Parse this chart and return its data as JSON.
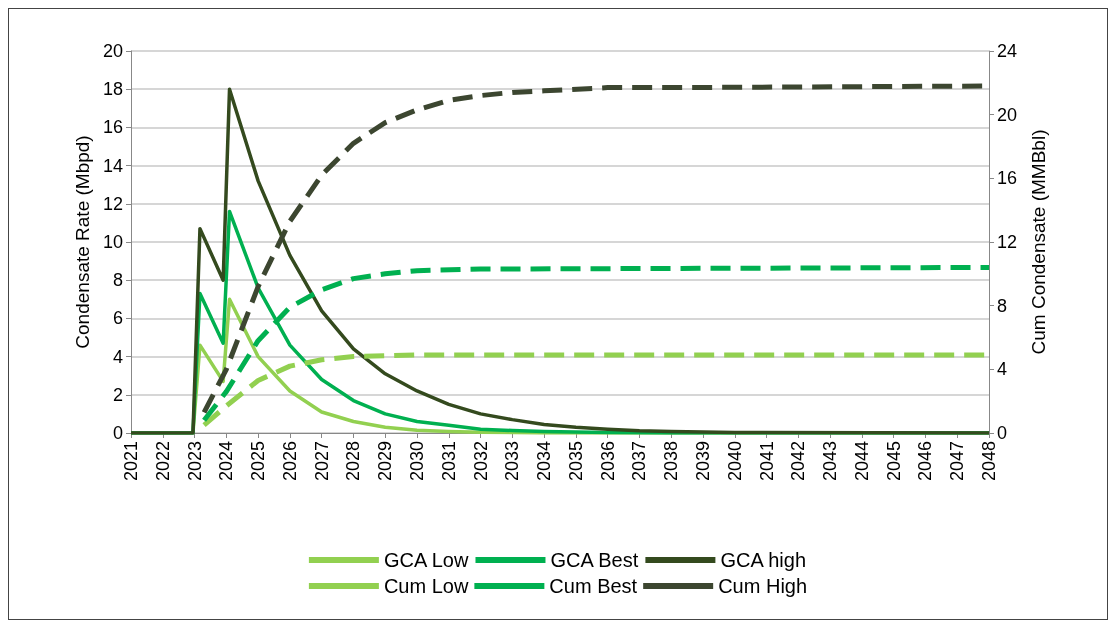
{
  "chart_data": {
    "type": "line",
    "ylabel": "Condensate Rate (Mbpd)",
    "y2label": "Cum Condensate (MMBbl)",
    "xlim": [
      2021,
      2048
    ],
    "xticks": [
      2021,
      2022,
      2023,
      2024,
      2025,
      2026,
      2027,
      2028,
      2029,
      2030,
      2031,
      2032,
      2033,
      2034,
      2035,
      2036,
      2037,
      2038,
      2039,
      2040,
      2041,
      2042,
      2043,
      2044,
      2045,
      2046,
      2047,
      2048
    ],
    "ylim": [
      0,
      20
    ],
    "yticks": [
      0,
      2,
      4,
      6,
      8,
      10,
      12,
      14,
      16,
      18,
      20
    ],
    "y2lim": [
      0,
      24
    ],
    "y2ticks": [
      0,
      4,
      8,
      12,
      16,
      20,
      24
    ],
    "grid": "y",
    "legend": "bottom",
    "marker": "none",
    "line_style": "solid",
    "series": [
      {
        "name": "GCA Low",
        "color": "#92d050",
        "x": [
          2021,
          2022.95,
          2023.17,
          2023.9,
          2024.1,
          2025,
          2026,
          2027,
          2028,
          2029,
          2030,
          2031,
          2032,
          2034,
          2048
        ],
        "values": [
          0,
          0,
          4.6,
          2.7,
          7.0,
          4.0,
          2.2,
          1.1,
          0.6,
          0.3,
          0.15,
          0.08,
          0.04,
          0,
          0
        ]
      },
      {
        "name": "GCA Best",
        "color": "#00b050",
        "x": [
          2021,
          2022.95,
          2023.17,
          2023.9,
          2024.1,
          2025,
          2026,
          2027,
          2028,
          2029,
          2030,
          2031,
          2032,
          2033,
          2034,
          2035,
          2036,
          2038,
          2048
        ],
        "values": [
          0,
          0,
          7.3,
          4.7,
          11.6,
          7.6,
          4.6,
          2.8,
          1.7,
          1.0,
          0.6,
          0.4,
          0.2,
          0.13,
          0.08,
          0.05,
          0.03,
          0,
          0
        ]
      },
      {
        "name": "GCA high",
        "color": "#344a1e",
        "x": [
          2021,
          2022.95,
          2023.17,
          2023.9,
          2024.1,
          2025,
          2026,
          2027,
          2028,
          2029,
          2030,
          2031,
          2032,
          2033,
          2034,
          2035,
          2036,
          2037,
          2038,
          2039,
          2040,
          2048
        ],
        "values": [
          0,
          0,
          10.7,
          8.0,
          18.0,
          13.2,
          9.3,
          6.4,
          4.4,
          3.1,
          2.2,
          1.5,
          1.0,
          0.7,
          0.45,
          0.3,
          0.2,
          0.12,
          0.08,
          0.05,
          0.03,
          0
        ]
      },
      {
        "name": "Cum Low",
        "color": "#92d050",
        "axis": "y2",
        "line_style": "dashed",
        "x": [
          2023.3,
          2024,
          2025,
          2026,
          2027,
          2028,
          2030,
          2048
        ],
        "values": [
          0.5,
          1.7,
          3.3,
          4.2,
          4.6,
          4.8,
          4.9,
          4.9
        ]
      },
      {
        "name": "Cum Best",
        "color": "#00b050",
        "axis": "y2",
        "line_style": "dashed",
        "x": [
          2023.3,
          2024,
          2025,
          2026,
          2027,
          2028,
          2029,
          2030,
          2032,
          2048
        ],
        "values": [
          0.8,
          2.6,
          5.8,
          7.9,
          9.0,
          9.7,
          10.0,
          10.2,
          10.3,
          10.4
        ]
      },
      {
        "name": "Cum High",
        "color": "#3c4630",
        "axis": "y2",
        "line_style": "dashed",
        "x": [
          2023.3,
          2024,
          2025,
          2026,
          2027,
          2028,
          2029,
          2030,
          2031,
          2032,
          2033,
          2034,
          2036,
          2038,
          2048
        ],
        "values": [
          1.3,
          4.0,
          9.2,
          13.3,
          16.2,
          18.2,
          19.5,
          20.3,
          20.9,
          21.2,
          21.4,
          21.5,
          21.7,
          21.7,
          21.8
        ]
      }
    ]
  }
}
